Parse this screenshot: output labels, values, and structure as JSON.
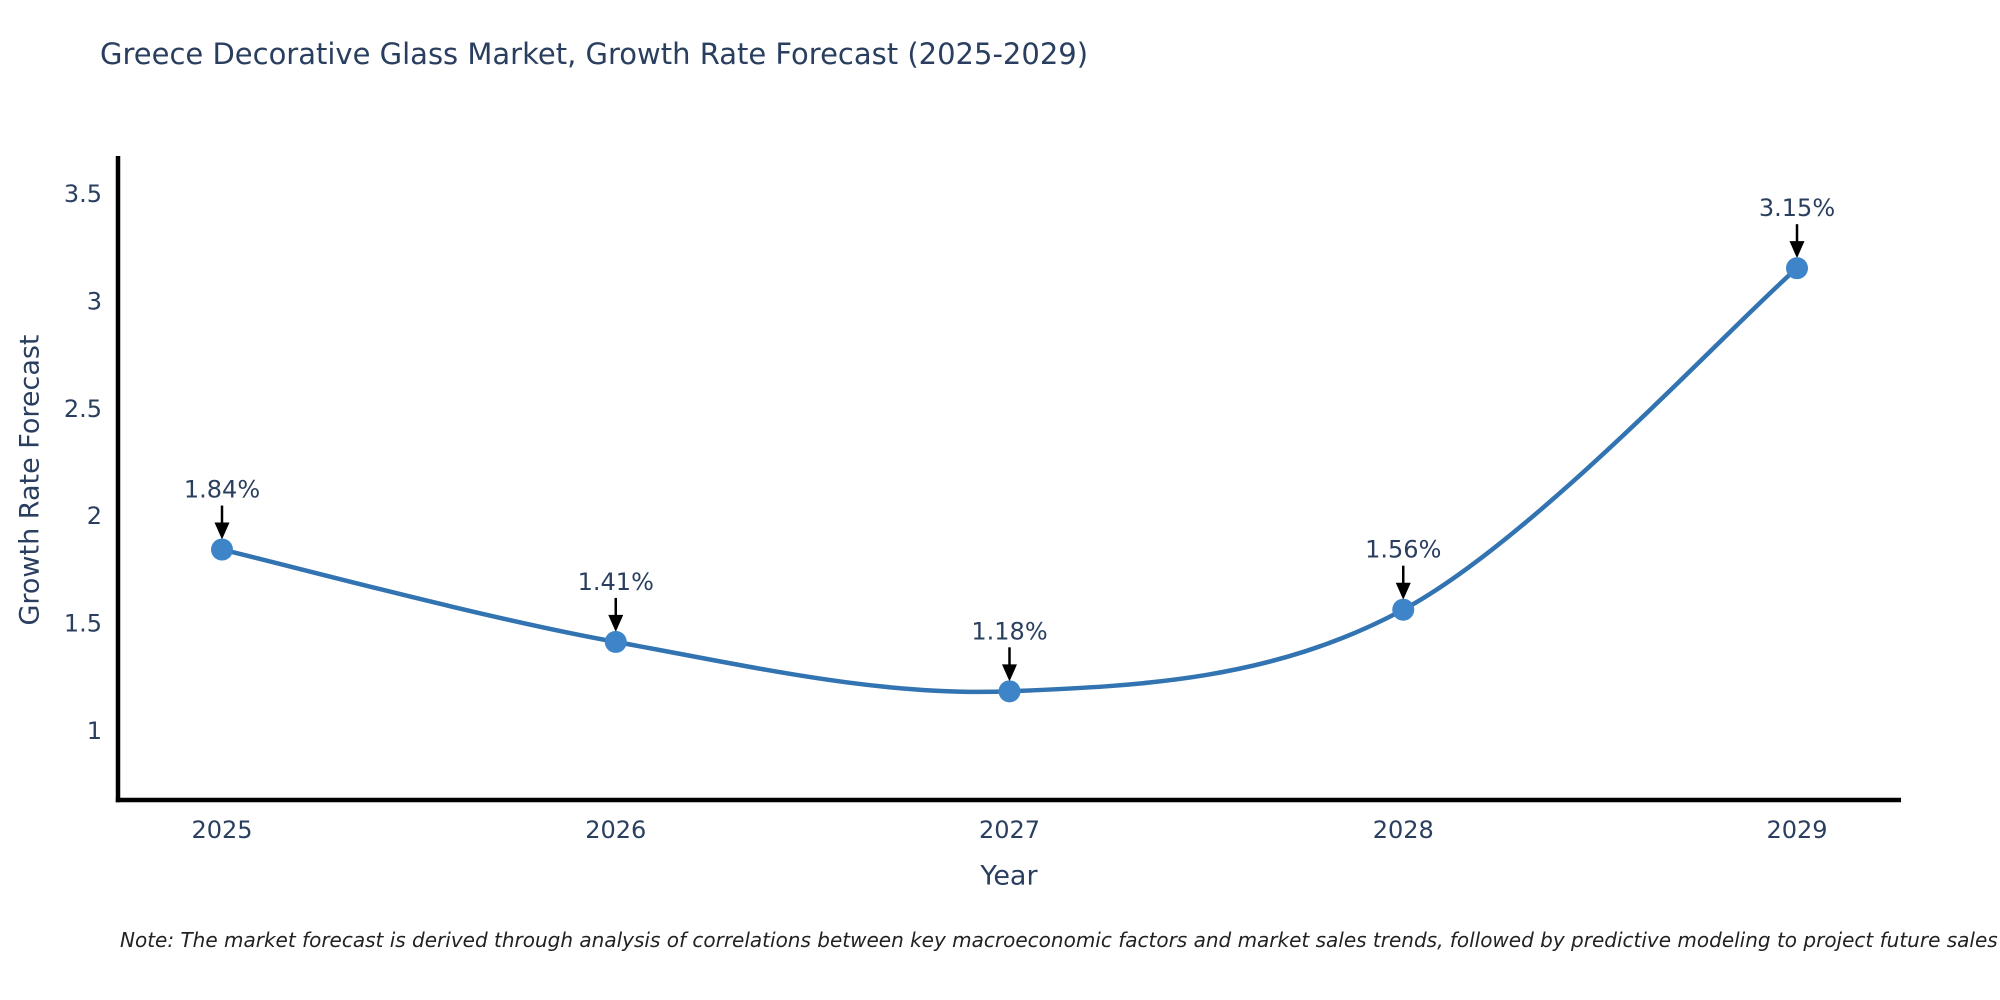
{
  "page": {
    "background": "#ffffff"
  },
  "note": "Note: The market forecast is derived through analysis of correlations between key macroeconomic factors and market sales trends, followed by predictive modeling to project future sales",
  "chart_data": {
    "type": "line",
    "title": "Greece Decorative Glass Market, Growth Rate Forecast (2025-2029)",
    "categories": [
      "2025",
      "2026",
      "2027",
      "2028",
      "2029"
    ],
    "series": [
      {
        "name": "Growth Rate Forecast",
        "values": [
          1.84,
          1.41,
          1.18,
          1.56,
          3.15
        ]
      }
    ],
    "point_labels": [
      "1.84%",
      "1.41%",
      "1.18%",
      "1.56%",
      "3.15%"
    ],
    "xlabel": "Year",
    "ylabel": "Growth Rate Forecast",
    "yticks": [
      1,
      1.5,
      2,
      2.5,
      3,
      3.5
    ],
    "ylim": [
      0.674,
      3.663
    ],
    "grid": false,
    "legend_position": "none",
    "line_shape": "spline",
    "marker_size": 11,
    "annotation_style": "arrow-down-to-point",
    "colors": {
      "line": "#3273b1",
      "marker": "#3d85c8",
      "axis": "#000000",
      "tick_text": "#2a3f5f",
      "annotation_text": "#2a3f5f",
      "arrow": "#000000",
      "title_text": "#2a3f5f",
      "note_text": "#222222"
    }
  }
}
